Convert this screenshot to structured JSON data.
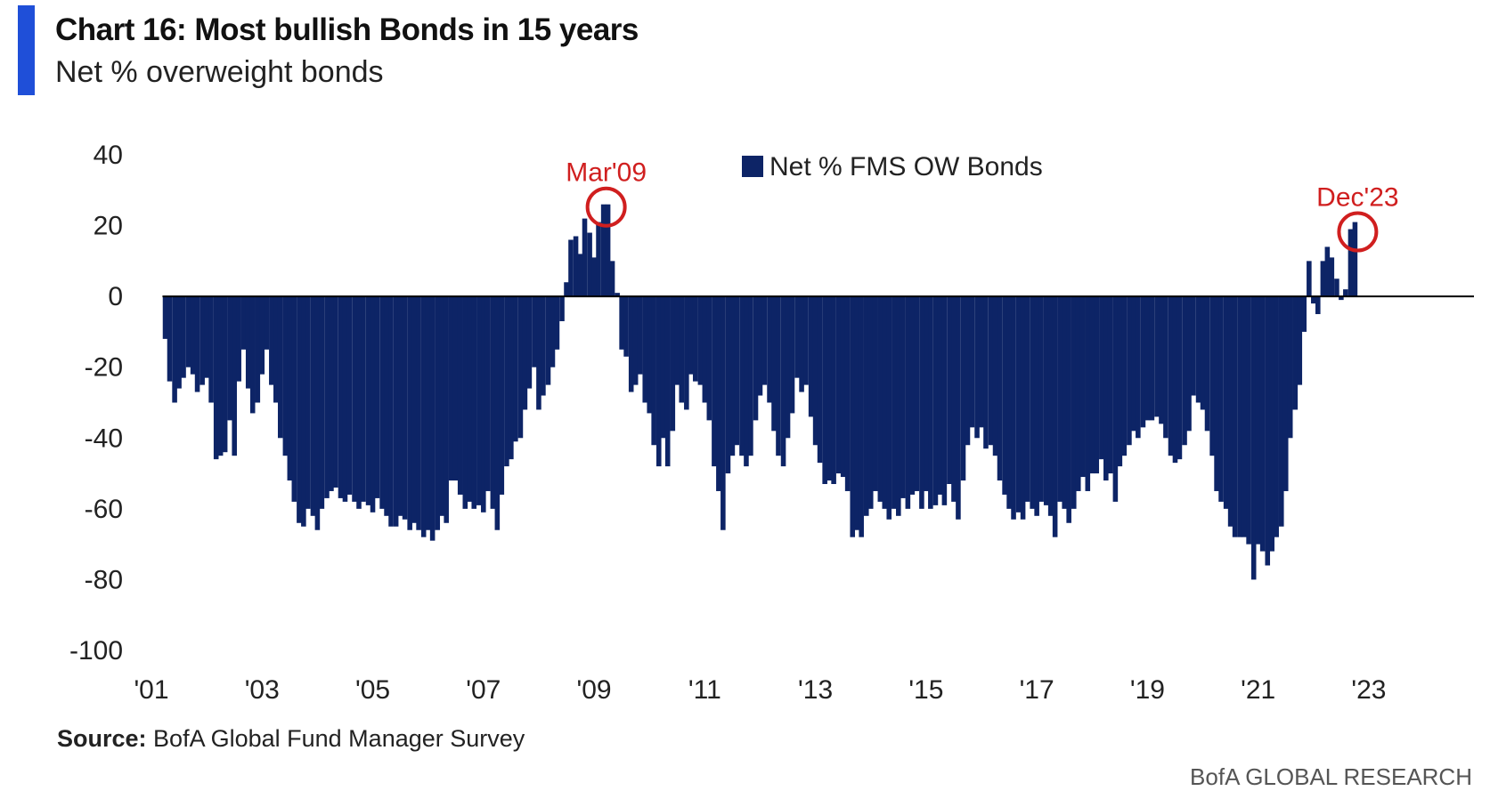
{
  "header": {
    "title": "Chart 16: Most bullish Bonds in 15 years",
    "subtitle": "Net % overweight bonds"
  },
  "footer": {
    "source_label": "Source:",
    "source_text": "BofA Global Fund Manager Survey",
    "brand": "BofA GLOBAL RESEARCH"
  },
  "colors": {
    "bars": "#0d2466",
    "accent": "#1f4fd8",
    "annotation": "#d01f1f",
    "zero_line": "#000000"
  },
  "chart_data": {
    "type": "bar",
    "title": "Chart 16: Most bullish Bonds in 15 years",
    "subtitle": "Net % overweight bonds",
    "xlabel": "",
    "ylabel": "",
    "ylim": [
      -100,
      40
    ],
    "yticks": [
      "40",
      "20",
      "0",
      "-20",
      "-40",
      "-60",
      "-80",
      "-100"
    ],
    "xlim": [
      2001.0,
      2024.9
    ],
    "xticks": [
      {
        "value": 2001,
        "label": "'01"
      },
      {
        "value": 2003,
        "label": "'03"
      },
      {
        "value": 2005,
        "label": "'05"
      },
      {
        "value": 2007,
        "label": "'07"
      },
      {
        "value": 2009,
        "label": "'09"
      },
      {
        "value": 2011,
        "label": "'11"
      },
      {
        "value": 2013,
        "label": "'13"
      },
      {
        "value": 2015,
        "label": "'15"
      },
      {
        "value": 2017,
        "label": "'17"
      },
      {
        "value": 2019,
        "label": "'19"
      },
      {
        "value": 2021,
        "label": "'21"
      },
      {
        "value": 2023,
        "label": "'23"
      }
    ],
    "grid": false,
    "legend": {
      "position": "top-center"
    },
    "series": [
      {
        "name": "Net % FMS OW Bonds",
        "color": "#0d2466",
        "points": [
          [
            2001.25,
            -12
          ],
          [
            2001.33,
            -24
          ],
          [
            2001.42,
            -30
          ],
          [
            2001.5,
            -26
          ],
          [
            2001.58,
            -23
          ],
          [
            2001.67,
            -20
          ],
          [
            2001.75,
            -22
          ],
          [
            2001.83,
            -27
          ],
          [
            2001.92,
            -25
          ],
          [
            2002.0,
            -23
          ],
          [
            2002.08,
            -30
          ],
          [
            2002.17,
            -46
          ],
          [
            2002.25,
            -45
          ],
          [
            2002.33,
            -44
          ],
          [
            2002.42,
            -35
          ],
          [
            2002.5,
            -45
          ],
          [
            2002.58,
            -24
          ],
          [
            2002.67,
            -15
          ],
          [
            2002.75,
            -26
          ],
          [
            2002.83,
            -33
          ],
          [
            2002.92,
            -30
          ],
          [
            2003.0,
            -22
          ],
          [
            2003.08,
            -15
          ],
          [
            2003.17,
            -25
          ],
          [
            2003.25,
            -30
          ],
          [
            2003.33,
            -40
          ],
          [
            2003.42,
            -45
          ],
          [
            2003.5,
            -52
          ],
          [
            2003.58,
            -58
          ],
          [
            2003.67,
            -64
          ],
          [
            2003.75,
            -65
          ],
          [
            2003.83,
            -60
          ],
          [
            2003.92,
            -62
          ],
          [
            2004.0,
            -66
          ],
          [
            2004.08,
            -60
          ],
          [
            2004.17,
            -57
          ],
          [
            2004.25,
            -55
          ],
          [
            2004.33,
            -54
          ],
          [
            2004.42,
            -57
          ],
          [
            2004.5,
            -58
          ],
          [
            2004.58,
            -56
          ],
          [
            2004.67,
            -58
          ],
          [
            2004.75,
            -60
          ],
          [
            2004.83,
            -58
          ],
          [
            2004.92,
            -59
          ],
          [
            2005.0,
            -61
          ],
          [
            2005.08,
            -57
          ],
          [
            2005.17,
            -60
          ],
          [
            2005.25,
            -62
          ],
          [
            2005.33,
            -65
          ],
          [
            2005.42,
            -65
          ],
          [
            2005.5,
            -62
          ],
          [
            2005.58,
            -63
          ],
          [
            2005.67,
            -66
          ],
          [
            2005.75,
            -64
          ],
          [
            2005.83,
            -66
          ],
          [
            2005.92,
            -68
          ],
          [
            2006.0,
            -66
          ],
          [
            2006.08,
            -69
          ],
          [
            2006.17,
            -66
          ],
          [
            2006.25,
            -62
          ],
          [
            2006.33,
            -64
          ],
          [
            2006.42,
            -52
          ],
          [
            2006.5,
            -52
          ],
          [
            2006.58,
            -56
          ],
          [
            2006.67,
            -60
          ],
          [
            2006.75,
            -58
          ],
          [
            2006.83,
            -60
          ],
          [
            2006.92,
            -59
          ],
          [
            2007.0,
            -61
          ],
          [
            2007.08,
            -55
          ],
          [
            2007.17,
            -60
          ],
          [
            2007.25,
            -66
          ],
          [
            2007.33,
            -56
          ],
          [
            2007.42,
            -48
          ],
          [
            2007.5,
            -46
          ],
          [
            2007.58,
            -41
          ],
          [
            2007.67,
            -40
          ],
          [
            2007.75,
            -32
          ],
          [
            2007.83,
            -26
          ],
          [
            2007.92,
            -20
          ],
          [
            2008.0,
            -32
          ],
          [
            2008.08,
            -28
          ],
          [
            2008.17,
            -25
          ],
          [
            2008.25,
            -20
          ],
          [
            2008.33,
            -15
          ],
          [
            2008.42,
            -7
          ],
          [
            2008.5,
            4
          ],
          [
            2008.58,
            16
          ],
          [
            2008.67,
            17
          ],
          [
            2008.75,
            12
          ],
          [
            2008.83,
            22
          ],
          [
            2008.92,
            18
          ],
          [
            2009.0,
            11
          ],
          [
            2009.08,
            21
          ],
          [
            2009.17,
            26
          ],
          [
            2009.25,
            26
          ],
          [
            2009.33,
            10
          ],
          [
            2009.42,
            1
          ],
          [
            2009.5,
            -15
          ],
          [
            2009.58,
            -17
          ],
          [
            2009.67,
            -27
          ],
          [
            2009.75,
            -25
          ],
          [
            2009.83,
            -22
          ],
          [
            2009.92,
            -30
          ],
          [
            2010.0,
            -33
          ],
          [
            2010.08,
            -42
          ],
          [
            2010.17,
            -48
          ],
          [
            2010.25,
            -40
          ],
          [
            2010.33,
            -48
          ],
          [
            2010.42,
            -38
          ],
          [
            2010.5,
            -25
          ],
          [
            2010.58,
            -30
          ],
          [
            2010.67,
            -32
          ],
          [
            2010.75,
            -22
          ],
          [
            2010.83,
            -24
          ],
          [
            2010.92,
            -25
          ],
          [
            2011.0,
            -30
          ],
          [
            2011.08,
            -35
          ],
          [
            2011.17,
            -48
          ],
          [
            2011.25,
            -55
          ],
          [
            2011.33,
            -66
          ],
          [
            2011.42,
            -50
          ],
          [
            2011.5,
            -45
          ],
          [
            2011.58,
            -42
          ],
          [
            2011.67,
            -45
          ],
          [
            2011.75,
            -48
          ],
          [
            2011.83,
            -45
          ],
          [
            2011.92,
            -35
          ],
          [
            2012.0,
            -28
          ],
          [
            2012.08,
            -25
          ],
          [
            2012.17,
            -30
          ],
          [
            2012.25,
            -38
          ],
          [
            2012.33,
            -45
          ],
          [
            2012.42,
            -48
          ],
          [
            2012.5,
            -40
          ],
          [
            2012.58,
            -33
          ],
          [
            2012.67,
            -23
          ],
          [
            2012.75,
            -27
          ],
          [
            2012.83,
            -25
          ],
          [
            2012.92,
            -34
          ],
          [
            2013.0,
            -42
          ],
          [
            2013.08,
            -47
          ],
          [
            2013.17,
            -53
          ],
          [
            2013.25,
            -52
          ],
          [
            2013.33,
            -53
          ],
          [
            2013.42,
            -50
          ],
          [
            2013.5,
            -51
          ],
          [
            2013.58,
            -55
          ],
          [
            2013.67,
            -68
          ],
          [
            2013.75,
            -66
          ],
          [
            2013.83,
            -68
          ],
          [
            2013.92,
            -62
          ],
          [
            2014.0,
            -60
          ],
          [
            2014.08,
            -55
          ],
          [
            2014.17,
            -58
          ],
          [
            2014.25,
            -60
          ],
          [
            2014.33,
            -63
          ],
          [
            2014.42,
            -60
          ],
          [
            2014.5,
            -62
          ],
          [
            2014.58,
            -57
          ],
          [
            2014.67,
            -60
          ],
          [
            2014.75,
            -56
          ],
          [
            2014.83,
            -55
          ],
          [
            2014.92,
            -60
          ],
          [
            2015.0,
            -55
          ],
          [
            2015.08,
            -60
          ],
          [
            2015.17,
            -59
          ],
          [
            2015.25,
            -56
          ],
          [
            2015.33,
            -59
          ],
          [
            2015.42,
            -53
          ],
          [
            2015.5,
            -58
          ],
          [
            2015.58,
            -63
          ],
          [
            2015.67,
            -52
          ],
          [
            2015.75,
            -42
          ],
          [
            2015.83,
            -37
          ],
          [
            2015.92,
            -40
          ],
          [
            2016.0,
            -37
          ],
          [
            2016.08,
            -43
          ],
          [
            2016.17,
            -42
          ],
          [
            2016.25,
            -45
          ],
          [
            2016.33,
            -52
          ],
          [
            2016.42,
            -56
          ],
          [
            2016.5,
            -60
          ],
          [
            2016.58,
            -63
          ],
          [
            2016.67,
            -61
          ],
          [
            2016.75,
            -63
          ],
          [
            2016.83,
            -58
          ],
          [
            2016.92,
            -60
          ],
          [
            2017.0,
            -62
          ],
          [
            2017.08,
            -58
          ],
          [
            2017.17,
            -59
          ],
          [
            2017.25,
            -62
          ],
          [
            2017.33,
            -68
          ],
          [
            2017.42,
            -58
          ],
          [
            2017.5,
            -60
          ],
          [
            2017.58,
            -64
          ],
          [
            2017.67,
            -60
          ],
          [
            2017.75,
            -55
          ],
          [
            2017.83,
            -51
          ],
          [
            2017.92,
            -55
          ],
          [
            2018.0,
            -50
          ],
          [
            2018.08,
            -50
          ],
          [
            2018.17,
            -46
          ],
          [
            2018.25,
            -52
          ],
          [
            2018.33,
            -50
          ],
          [
            2018.42,
            -58
          ],
          [
            2018.5,
            -48
          ],
          [
            2018.58,
            -45
          ],
          [
            2018.67,
            -42
          ],
          [
            2018.75,
            -38
          ],
          [
            2018.83,
            -40
          ],
          [
            2018.92,
            -37
          ],
          [
            2019.0,
            -35
          ],
          [
            2019.08,
            -35
          ],
          [
            2019.17,
            -34
          ],
          [
            2019.25,
            -36
          ],
          [
            2019.33,
            -40
          ],
          [
            2019.42,
            -45
          ],
          [
            2019.5,
            -47
          ],
          [
            2019.58,
            -46
          ],
          [
            2019.67,
            -42
          ],
          [
            2019.75,
            -38
          ],
          [
            2019.83,
            -28
          ],
          [
            2019.92,
            -30
          ],
          [
            2020.0,
            -32
          ],
          [
            2020.08,
            -38
          ],
          [
            2020.17,
            -45
          ],
          [
            2020.25,
            -55
          ],
          [
            2020.33,
            -58
          ],
          [
            2020.42,
            -60
          ],
          [
            2020.5,
            -65
          ],
          [
            2020.58,
            -68
          ],
          [
            2020.67,
            -68
          ],
          [
            2020.75,
            -68
          ],
          [
            2020.83,
            -70
          ],
          [
            2020.92,
            -80
          ],
          [
            2021.0,
            -70
          ],
          [
            2021.08,
            -72
          ],
          [
            2021.17,
            -76
          ],
          [
            2021.25,
            -72
          ],
          [
            2021.33,
            -68
          ],
          [
            2021.42,
            -65
          ],
          [
            2021.5,
            -55
          ],
          [
            2021.58,
            -40
          ],
          [
            2021.67,
            -32
          ],
          [
            2021.75,
            -25
          ],
          [
            2021.83,
            -10
          ],
          [
            2021.92,
            10
          ],
          [
            2022.0,
            -2
          ],
          [
            2022.08,
            -5
          ],
          [
            2022.17,
            10
          ],
          [
            2022.25,
            14
          ],
          [
            2022.33,
            11
          ],
          [
            2022.42,
            5
          ],
          [
            2022.5,
            -1
          ],
          [
            2022.58,
            2
          ],
          [
            2022.67,
            19
          ],
          [
            2022.75,
            21
          ]
        ]
      }
    ],
    "annotations": [
      {
        "label": "Mar'09",
        "x": 2009.17,
        "y": 26
      },
      {
        "label": "Dec'23",
        "x": 2022.75,
        "y": 19
      }
    ]
  }
}
